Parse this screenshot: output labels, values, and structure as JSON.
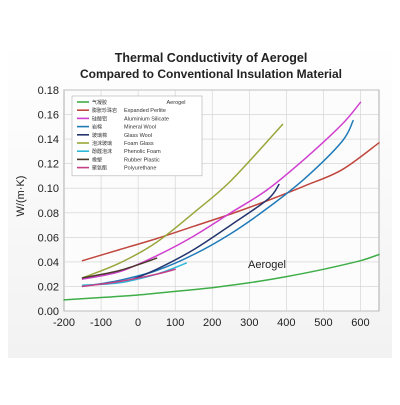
{
  "chart_data": {
    "type": "line",
    "title": "Thermal Conductivity of Aerogel",
    "subtitle": "Compared to Conventional Insulation Material",
    "xlabel": "",
    "ylabel": "W/(m·K)",
    "xlim": [
      -200,
      650
    ],
    "ylim": [
      0.0,
      0.18
    ],
    "xticks": [
      "-200",
      "-100",
      "0",
      "100",
      "200",
      "300",
      "400",
      "500",
      "600"
    ],
    "yticks": [
      "0.00",
      "0.02",
      "0.04",
      "0.06",
      "0.08",
      "0.10",
      "0.12",
      "0.14",
      "0.16",
      "0.18"
    ],
    "grid": true,
    "legend_placement": "top-left",
    "annotations": [
      {
        "text": "Aerogel"
      }
    ],
    "series": [
      {
        "name": "Aerogel",
        "name_cn": "气凝胶",
        "color": "#3fae49",
        "x": [
          -200,
          -100,
          0,
          100,
          200,
          300,
          400,
          500,
          600,
          650
        ],
        "y": [
          0.009,
          0.011,
          0.013,
          0.016,
          0.019,
          0.023,
          0.028,
          0.034,
          0.041,
          0.046
        ]
      },
      {
        "name": "Expanded Perlite",
        "name_cn": "膨胀珍珠岩",
        "color": "#c0473e",
        "x": [
          -150,
          -50,
          50,
          150,
          250,
          350,
          450,
          550,
          650
        ],
        "y": [
          0.041,
          0.05,
          0.059,
          0.069,
          0.079,
          0.09,
          0.102,
          0.115,
          0.137
        ]
      },
      {
        "name": "Aluminium Silicate",
        "name_cn": "硅酸铝",
        "color": "#d13fcf",
        "x": [
          -150,
          -50,
          50,
          150,
          250,
          350,
          450,
          550,
          600
        ],
        "y": [
          0.026,
          0.032,
          0.045,
          0.061,
          0.08,
          0.099,
          0.124,
          0.152,
          0.17
        ]
      },
      {
        "name": "Mineral Wool",
        "name_cn": "岩棉",
        "color": "#1f7ab8",
        "x": [
          -150,
          -50,
          50,
          150,
          250,
          350,
          450,
          550,
          580
        ],
        "y": [
          0.02,
          0.025,
          0.033,
          0.046,
          0.063,
          0.084,
          0.108,
          0.138,
          0.155
        ]
      },
      {
        "name": "Glass Wool",
        "name_cn": "玻璃棉",
        "color": "#23346e",
        "x": [
          -30,
          50,
          150,
          250,
          350,
          380
        ],
        "y": [
          0.024,
          0.034,
          0.05,
          0.07,
          0.091,
          0.103
        ]
      },
      {
        "name": "Foam Glass",
        "name_cn": "泡沫玻璃",
        "color": "#9aa63a",
        "x": [
          -150,
          -50,
          50,
          150,
          250,
          390
        ],
        "y": [
          0.027,
          0.039,
          0.056,
          0.08,
          0.106,
          0.152
        ]
      },
      {
        "name": "Phenolic Foam",
        "name_cn": "酚醛泡沫",
        "color": "#2eb8d8",
        "x": [
          -150,
          -50,
          50,
          130
        ],
        "y": [
          0.021,
          0.023,
          0.03,
          0.039
        ]
      },
      {
        "name": "Rubber Plastic",
        "name_cn": "橡塑",
        "color": "#4a3a2a",
        "x": [
          -150,
          -50,
          50
        ],
        "y": [
          0.027,
          0.033,
          0.043
        ]
      },
      {
        "name": "Polyurethane",
        "name_cn": "聚氨酯",
        "color": "#c63f86",
        "x": [
          -150,
          -50,
          50,
          100
        ],
        "y": [
          0.02,
          0.024,
          0.03,
          0.034
        ]
      }
    ]
  }
}
